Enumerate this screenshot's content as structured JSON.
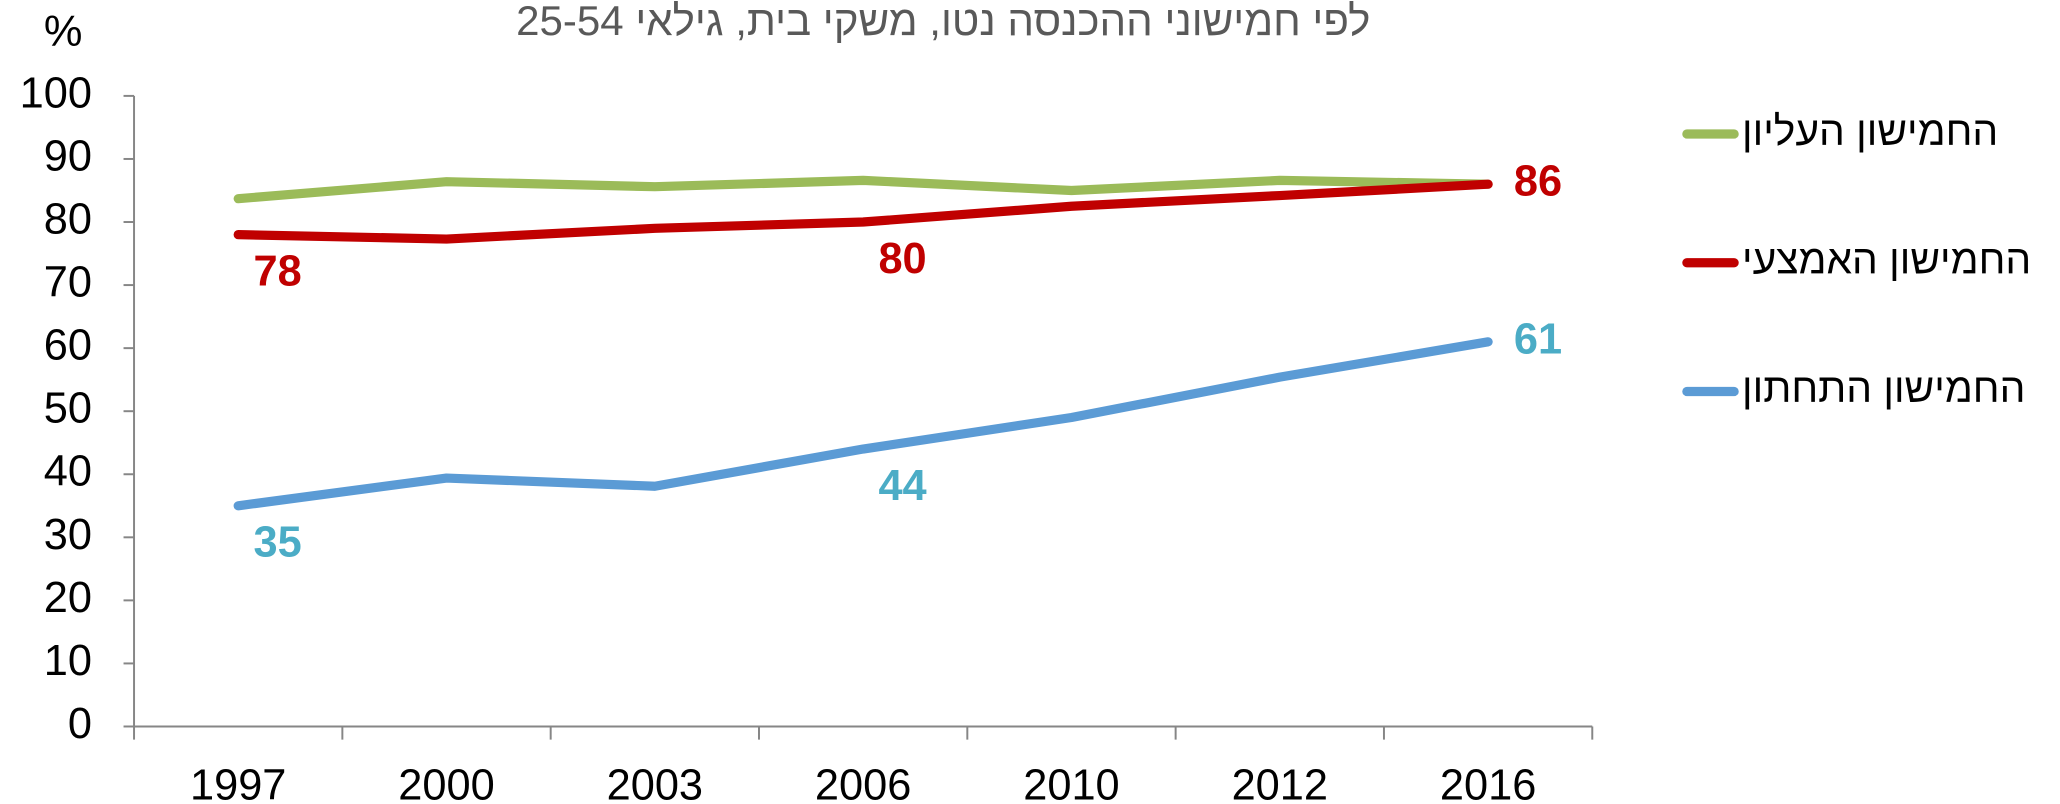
{
  "chart_data": {
    "type": "line",
    "title": "לפי חמישוני ההכנסה נטו, משקי בית, גילאי 25-54",
    "y_label": "%",
    "categories": [
      "1997",
      "2000",
      "2003",
      "2006",
      "2010",
      "2012",
      "2016"
    ],
    "series": [
      {
        "name": "החמישון העליון",
        "color": "#9bbb59",
        "values": [
          83.7,
          86.4,
          85.6,
          86.6,
          85.0,
          86.6,
          86.0
        ],
        "labeled_points": []
      },
      {
        "name": "החמישון האמצעי",
        "color": "#c00000",
        "values": [
          78,
          77.3,
          79.0,
          80,
          82.5,
          84.2,
          86
        ],
        "labeled_points": [
          0,
          3,
          6
        ],
        "label_color": "#c00000"
      },
      {
        "name": "החמישון התחתון",
        "color": "#5b9bd5",
        "values": [
          35,
          39.4,
          38.1,
          44,
          49.0,
          55.4,
          61
        ],
        "labeled_points": [
          0,
          3,
          6
        ],
        "label_color": "#4bacc6"
      }
    ],
    "ylim": [
      0,
      100
    ],
    "yticks": [
      0,
      10,
      20,
      30,
      40,
      50,
      60,
      70,
      80,
      90,
      100
    ],
    "grid": false,
    "legend": "right"
  }
}
